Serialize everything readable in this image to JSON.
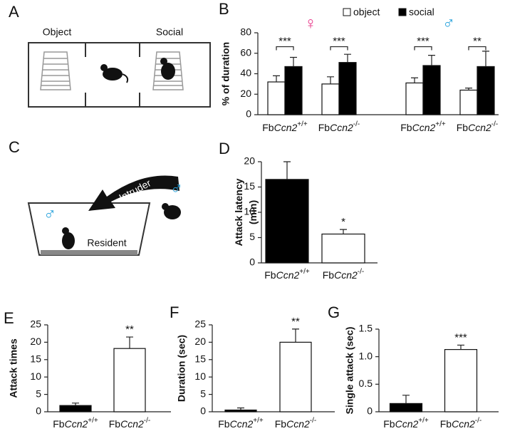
{
  "panel_labels": [
    "A",
    "B",
    "C",
    "D",
    "E",
    "F",
    "G"
  ],
  "diagram_a": {
    "left_label": "Object",
    "right_label": "Social"
  },
  "diagram_c": {
    "arrow_label": "Intruder",
    "resident_label": "Resident",
    "resident_sex": "♂",
    "intruder_sex": "♂"
  },
  "chart_data": [
    {
      "type": "grouped_bar",
      "ylabel": "% of duration",
      "categories": [
        "FbCcn2+/+",
        "FbCcn2-/-",
        "FbCcn2+/+",
        "FbCcn2-/-"
      ],
      "series": [
        {
          "name": "object",
          "color": "#ffffff",
          "values": [
            32,
            30,
            31,
            24
          ],
          "errors": [
            6,
            7,
            5,
            2
          ]
        },
        {
          "name": "social",
          "color": "#000000",
          "values": [
            47,
            51,
            48,
            47
          ],
          "errors": [
            9,
            8,
            10,
            15
          ]
        }
      ],
      "significance": [
        "***",
        "***",
        "***",
        "**"
      ],
      "sex_labels": [
        "♀",
        "♂"
      ],
      "ylim": [
        0,
        80
      ],
      "yticks": [
        0,
        20,
        40,
        60,
        80
      ]
    },
    {
      "type": "bar",
      "ylabel": "Attack latency (min)",
      "categories": [
        "FbCcn2+/+",
        "FbCcn2-/-"
      ],
      "values": [
        16.5,
        5.7
      ],
      "errors": [
        3.5,
        0.9
      ],
      "colors": [
        "#000000",
        "#ffffff"
      ],
      "significance": [
        null,
        "*"
      ],
      "ylim": [
        0,
        20
      ],
      "yticks": [
        0,
        5,
        10,
        15,
        20
      ]
    },
    {
      "type": "bar",
      "ylabel": "Attack times",
      "categories": [
        "FbCcn2+/+",
        "FbCcn2-/-"
      ],
      "values": [
        1.8,
        18.2
      ],
      "errors": [
        0.7,
        3.3
      ],
      "colors": [
        "#000000",
        "#ffffff"
      ],
      "significance": [
        null,
        "**"
      ],
      "ylim": [
        0,
        25
      ],
      "yticks": [
        0,
        5,
        10,
        15,
        20,
        25
      ]
    },
    {
      "type": "bar",
      "ylabel": "Duration (sec)",
      "categories": [
        "FbCcn2+/+",
        "FbCcn2-/-"
      ],
      "values": [
        0.5,
        20
      ],
      "errors": [
        0.6,
        3.8
      ],
      "colors": [
        "#000000",
        "#ffffff"
      ],
      "significance": [
        null,
        "**"
      ],
      "ylim": [
        0,
        25
      ],
      "yticks": [
        0,
        5,
        10,
        15,
        20,
        25
      ]
    },
    {
      "type": "bar",
      "ylabel": "Single attack (sec)",
      "categories": [
        "FbCcn2+/+",
        "FbCcn2-/-"
      ],
      "values": [
        0.15,
        1.13
      ],
      "errors": [
        0.15,
        0.08
      ],
      "colors": [
        "#000000",
        "#ffffff"
      ],
      "significance": [
        null,
        "***"
      ],
      "ylim": [
        0,
        1.5
      ],
      "yticks": [
        0,
        0.5,
        {
          "value": 1,
          "label": "1.0"
        },
        1.5
      ]
    }
  ]
}
